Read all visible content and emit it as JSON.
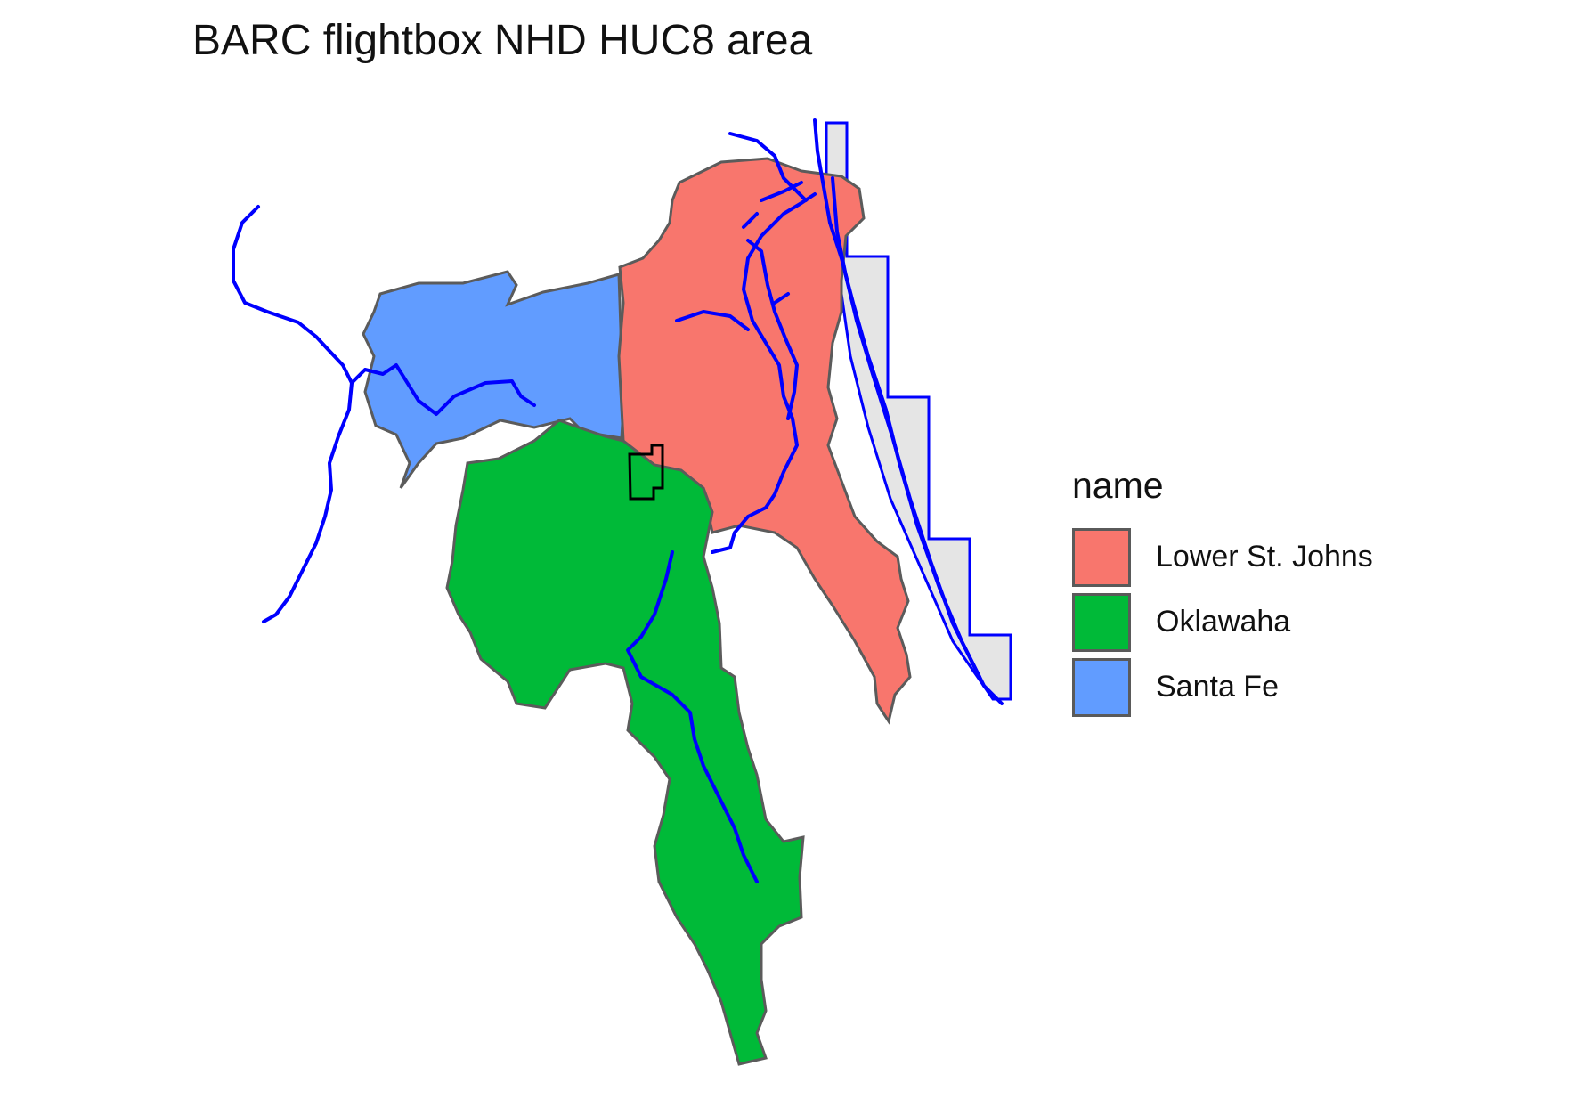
{
  "title": "BARC flightbox NHD HUC8 area",
  "colors": {
    "border": "#5b5b5b",
    "flowline": "#0000ff",
    "flightbox": "#000000",
    "coastal_box_fill": "#e5e5e5"
  },
  "legend": {
    "title": "name",
    "items": [
      {
        "label": "Lower St. Johns",
        "color": "#f8766d"
      },
      {
        "label": "Oklawaha",
        "color": "#00ba38"
      },
      {
        "label": "Santa Fe",
        "color": "#619cff"
      }
    ]
  }
}
